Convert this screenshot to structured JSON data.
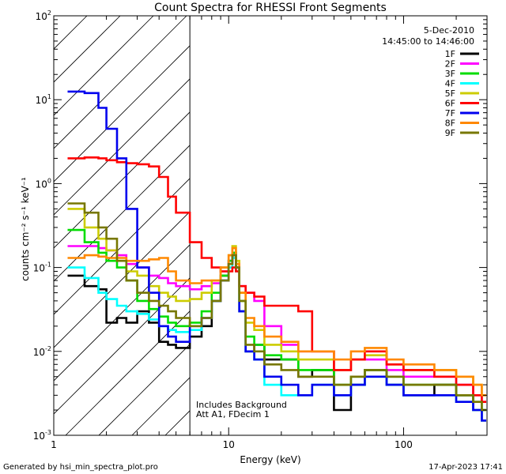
{
  "chart_data": {
    "type": "line",
    "title": "Count Spectra for RHESSI Front Segments",
    "xlabel": "Energy (keV)",
    "ylabel": "counts cm⁻² s⁻¹ keV⁻¹",
    "xscale": "log",
    "yscale": "log",
    "xlim": [
      1,
      300
    ],
    "ylim": [
      0.001,
      100
    ],
    "x_tick_labels": [
      {
        "value": 1,
        "label": "1"
      },
      {
        "value": 10,
        "label": "10"
      },
      {
        "value": 100,
        "label": "100"
      }
    ],
    "y_tick_labels": [
      {
        "value": 0.001,
        "base": "10",
        "exp": "-3"
      },
      {
        "value": 0.01,
        "base": "10",
        "exp": "-2"
      },
      {
        "value": 0.1,
        "base": "10",
        "exp": "-1"
      },
      {
        "value": 1,
        "base": "10",
        "exp": "0"
      },
      {
        "value": 10,
        "base": "10",
        "exp": "1"
      },
      {
        "value": 100,
        "base": "10",
        "exp": "2"
      }
    ],
    "date": "5-Dec-2010",
    "time_range": "14:45:00 to 14:46:00",
    "annotations": [
      "Includes Background",
      "Att A1, FDecim 1"
    ],
    "hatch_region_xmax": 6,
    "footer_left": "Generated by hsi_min_spectra_plot.pro",
    "footer_right": "17-Apr-2023 17:41",
    "series": [
      {
        "name": "1F",
        "color": "#000000",
        "x": [
          1.2,
          1.5,
          1.8,
          2.0,
          2.3,
          2.6,
          3.0,
          3.5,
          4.0,
          4.5,
          5.0,
          6.0,
          7.0,
          8.0,
          9.0,
          10.0,
          10.5,
          11.0,
          11.5,
          12.5,
          14,
          16,
          20,
          25,
          30,
          40,
          50,
          60,
          80,
          100,
          150,
          200,
          250,
          280
        ],
        "y": [
          0.08,
          0.06,
          0.055,
          0.022,
          0.025,
          0.022,
          0.03,
          0.022,
          0.013,
          0.012,
          0.011,
          0.015,
          0.02,
          0.04,
          0.08,
          0.12,
          0.15,
          0.1,
          0.03,
          0.01,
          0.012,
          0.008,
          0.008,
          0.005,
          0.006,
          0.002,
          0.004,
          0.006,
          0.004,
          0.003,
          0.004,
          0.003,
          0.002,
          0.0015
        ]
      },
      {
        "name": "2F",
        "color": "#ff00ff",
        "x": [
          1.2,
          1.5,
          1.8,
          2.0,
          2.3,
          2.6,
          3.0,
          3.5,
          4.0,
          4.5,
          5.0,
          6.0,
          7.0,
          8.0,
          9.0,
          10.0,
          10.5,
          11.0,
          11.5,
          12.5,
          14,
          16,
          20,
          25,
          30,
          40,
          50,
          60,
          80,
          100,
          150,
          200,
          250,
          280
        ],
        "y": [
          0.18,
          0.18,
          0.17,
          0.16,
          0.14,
          0.11,
          0.1,
          0.08,
          0.075,
          0.065,
          0.06,
          0.055,
          0.06,
          0.065,
          0.09,
          0.12,
          0.15,
          0.1,
          0.06,
          0.05,
          0.04,
          0.02,
          0.012,
          0.01,
          0.01,
          0.006,
          0.008,
          0.008,
          0.006,
          0.005,
          0.005,
          0.004,
          0.003,
          0.0025
        ]
      },
      {
        "name": "3F",
        "color": "#00dd00",
        "x": [
          1.2,
          1.5,
          1.8,
          2.0,
          2.3,
          2.6,
          3.0,
          3.5,
          4.0,
          4.5,
          5.0,
          6.0,
          7.0,
          8.0,
          9.0,
          10.0,
          10.5,
          11.0,
          11.5,
          12.5,
          14,
          16,
          20,
          25,
          30,
          40,
          50,
          60,
          80,
          100,
          150,
          200,
          250,
          280
        ],
        "y": [
          0.28,
          0.2,
          0.15,
          0.12,
          0.1,
          0.07,
          0.04,
          0.032,
          0.026,
          0.022,
          0.02,
          0.022,
          0.03,
          0.05,
          0.08,
          0.12,
          0.15,
          0.1,
          0.04,
          0.015,
          0.012,
          0.009,
          0.008,
          0.006,
          0.006,
          0.004,
          0.005,
          0.006,
          0.005,
          0.004,
          0.004,
          0.003,
          0.0025,
          0.002
        ]
      },
      {
        "name": "4F",
        "color": "#00ffff",
        "x": [
          1.2,
          1.5,
          1.8,
          2.0,
          2.3,
          2.6,
          3.0,
          3.5,
          4.0,
          4.5,
          5.0,
          6.0,
          7.0,
          8.0,
          9.0,
          10.0,
          10.5,
          11.0,
          11.5,
          12.5,
          14,
          16,
          20,
          25,
          30,
          40,
          50,
          60,
          80,
          100,
          150,
          200,
          250,
          280
        ],
        "y": [
          0.1,
          0.075,
          0.05,
          0.042,
          0.035,
          0.03,
          0.028,
          0.024,
          0.02,
          0.018,
          0.017,
          0.018,
          0.025,
          0.04,
          0.07,
          0.1,
          0.13,
          0.09,
          0.03,
          0.01,
          0.008,
          0.004,
          0.003,
          0.003,
          0.004,
          0.003,
          0.004,
          0.005,
          0.004,
          0.003,
          0.003,
          0.0025,
          0.002,
          0.0015
        ]
      },
      {
        "name": "5F",
        "color": "#cccc00",
        "x": [
          1.2,
          1.5,
          1.8,
          2.0,
          2.3,
          2.6,
          3.0,
          3.5,
          4.0,
          4.5,
          5.0,
          6.0,
          7.0,
          8.0,
          9.0,
          10.0,
          10.5,
          11.0,
          11.5,
          12.5,
          14,
          16,
          20,
          25,
          30,
          40,
          50,
          60,
          80,
          100,
          150,
          200,
          250,
          280
        ],
        "y": [
          0.5,
          0.3,
          0.22,
          0.16,
          0.12,
          0.09,
          0.08,
          0.06,
          0.05,
          0.045,
          0.04,
          0.042,
          0.05,
          0.07,
          0.1,
          0.14,
          0.18,
          0.12,
          0.05,
          0.022,
          0.018,
          0.012,
          0.01,
          0.008,
          0.008,
          0.006,
          0.008,
          0.009,
          0.007,
          0.006,
          0.006,
          0.005,
          0.004,
          0.003
        ]
      },
      {
        "name": "6F",
        "color": "#ff0000",
        "x": [
          1.2,
          1.5,
          1.8,
          2.0,
          2.3,
          2.6,
          3.0,
          3.5,
          4.0,
          4.5,
          5.0,
          6.0,
          7.0,
          8.0,
          9.0,
          10.0,
          10.5,
          11.0,
          11.5,
          12.5,
          14,
          16,
          20,
          25,
          30,
          40,
          50,
          60,
          80,
          100,
          150,
          200,
          250,
          280
        ],
        "y": [
          2.0,
          2.05,
          2.0,
          1.9,
          1.8,
          1.75,
          1.7,
          1.6,
          1.2,
          0.7,
          0.45,
          0.2,
          0.13,
          0.1,
          0.09,
          0.09,
          0.1,
          0.09,
          0.06,
          0.05,
          0.045,
          0.035,
          0.035,
          0.03,
          0.01,
          0.006,
          0.008,
          0.01,
          0.007,
          0.006,
          0.005,
          0.004,
          0.003,
          0.0025
        ]
      },
      {
        "name": "7F",
        "color": "#0000ee",
        "x": [
          1.2,
          1.5,
          1.8,
          2.0,
          2.3,
          2.6,
          3.0,
          3.5,
          4.0,
          4.5,
          5.0,
          6.0,
          7.0,
          8.0,
          9.0,
          10.0,
          10.5,
          11.0,
          11.5,
          12.5,
          14,
          16,
          20,
          25,
          30,
          40,
          50,
          60,
          80,
          100,
          150,
          200,
          250,
          280
        ],
        "y": [
          12.5,
          12,
          8,
          4.5,
          2.0,
          0.5,
          0.1,
          0.05,
          0.02,
          0.015,
          0.013,
          0.02,
          0.025,
          0.04,
          0.07,
          0.11,
          0.14,
          0.1,
          0.03,
          0.01,
          0.008,
          0.005,
          0.004,
          0.003,
          0.004,
          0.003,
          0.004,
          0.005,
          0.004,
          0.003,
          0.003,
          0.0025,
          0.002,
          0.0015
        ]
      },
      {
        "name": "8F",
        "color": "#ff8800",
        "x": [
          1.2,
          1.5,
          1.8,
          2.0,
          2.3,
          2.6,
          3.0,
          3.5,
          4.0,
          4.5,
          5.0,
          6.0,
          7.0,
          8.0,
          9.0,
          10.0,
          10.5,
          11.0,
          11.5,
          12.5,
          14,
          16,
          20,
          25,
          30,
          40,
          50,
          60,
          80,
          100,
          150,
          200,
          250,
          280
        ],
        "y": [
          0.13,
          0.14,
          0.135,
          0.13,
          0.13,
          0.12,
          0.12,
          0.125,
          0.13,
          0.09,
          0.07,
          0.065,
          0.07,
          0.07,
          0.1,
          0.14,
          0.17,
          0.11,
          0.05,
          0.025,
          0.02,
          0.015,
          0.013,
          0.01,
          0.01,
          0.008,
          0.01,
          0.011,
          0.008,
          0.007,
          0.006,
          0.005,
          0.004,
          0.003
        ]
      },
      {
        "name": "9F",
        "color": "#777700",
        "x": [
          1.2,
          1.5,
          1.8,
          2.0,
          2.3,
          2.6,
          3.0,
          3.5,
          4.0,
          4.5,
          5.0,
          6.0,
          7.0,
          8.0,
          9.0,
          10.0,
          10.5,
          11.0,
          11.5,
          12.5,
          14,
          16,
          20,
          25,
          30,
          40,
          50,
          60,
          80,
          100,
          150,
          200,
          250,
          280
        ],
        "y": [
          0.58,
          0.45,
          0.3,
          0.22,
          0.12,
          0.07,
          0.05,
          0.04,
          0.035,
          0.03,
          0.025,
          0.02,
          0.025,
          0.04,
          0.07,
          0.11,
          0.14,
          0.1,
          0.04,
          0.012,
          0.01,
          0.007,
          0.006,
          0.005,
          0.005,
          0.004,
          0.005,
          0.006,
          0.005,
          0.004,
          0.004,
          0.003,
          0.0025,
          0.002
        ]
      }
    ]
  }
}
